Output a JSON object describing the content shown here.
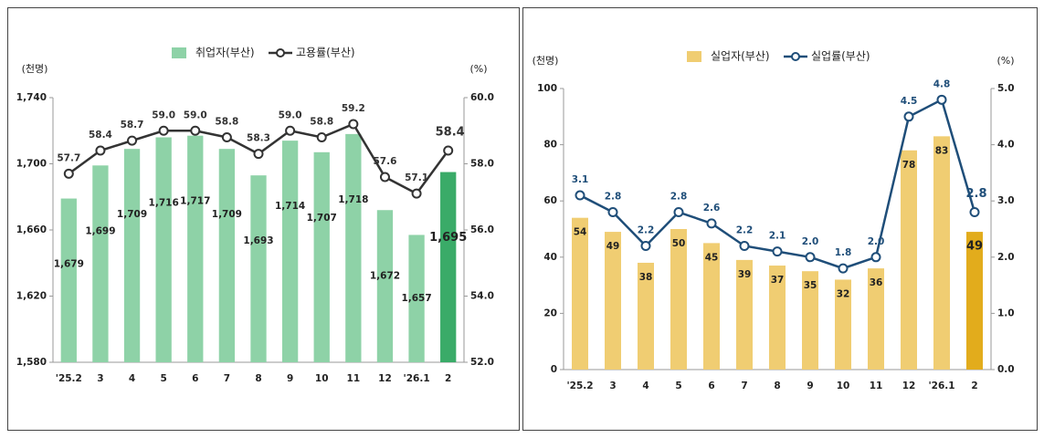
{
  "chart_data": [
    {
      "type": "combo",
      "y_unit": "(천명)",
      "y2_unit": "(%)",
      "categories": [
        "'25.2",
        "3",
        "4",
        "5",
        "6",
        "7",
        "8",
        "9",
        "10",
        "11",
        "12",
        "'26.1",
        "2"
      ],
      "series": [
        {
          "name": "취업자(부산)",
          "type": "bar",
          "axis": "y",
          "color": "#8ed2a7",
          "colors": [
            "#8ed2a7",
            "#8ed2a7",
            "#8ed2a7",
            "#8ed2a7",
            "#8ed2a7",
            "#8ed2a7",
            "#8ed2a7",
            "#8ed2a7",
            "#8ed2a7",
            "#8ed2a7",
            "#8ed2a7",
            "#8ed2a7",
            "#3aab68"
          ],
          "values": [
            1679,
            1699,
            1709,
            1716,
            1717,
            1709,
            1693,
            1714,
            1707,
            1718,
            1672,
            1657,
            1695
          ],
          "value_labels": [
            "1,679",
            "1,699",
            "1,709",
            "1,716",
            "1,717",
            "1,709",
            "1,693",
            "1,714",
            "1,707",
            "1,718",
            "1,672",
            "1,657",
            "1,695"
          ]
        },
        {
          "name": "고용률(부산)",
          "type": "line",
          "axis": "y2",
          "color": "#333333",
          "values": [
            57.7,
            58.4,
            58.7,
            59.0,
            59.0,
            58.8,
            58.3,
            59.0,
            58.8,
            59.2,
            57.6,
            57.1,
            58.4
          ],
          "value_labels": [
            "57.7",
            "58.4",
            "58.7",
            "59.0",
            "59.0",
            "58.8",
            "58.3",
            "59.0",
            "58.8",
            "59.2",
            "57.6",
            "57.1",
            "58.4"
          ]
        }
      ],
      "ylim": [
        1580,
        1740
      ],
      "yticks": [
        {
          "value": 1580,
          "label": "1,580"
        },
        {
          "value": 1620,
          "label": "1,620"
        },
        {
          "value": 1660,
          "label": "1,660"
        },
        {
          "value": 1700,
          "label": "1,700"
        },
        {
          "value": 1740,
          "label": "1,740"
        }
      ],
      "y2lim": [
        52,
        60
      ],
      "y2ticks": [
        {
          "value": 52,
          "label": "52.0"
        },
        {
          "value": 54,
          "label": "54.0"
        },
        {
          "value": 56,
          "label": "56.0"
        },
        {
          "value": 58,
          "label": "58.0"
        },
        {
          "value": 60,
          "label": "60.0"
        }
      ]
    },
    {
      "type": "combo",
      "y_unit": "(천명)",
      "y2_unit": "(%)",
      "categories": [
        "'25.2",
        "3",
        "4",
        "5",
        "6",
        "7",
        "8",
        "9",
        "10",
        "11",
        "12",
        "'26.1",
        "2"
      ],
      "series": [
        {
          "name": "실업자(부산)",
          "type": "bar",
          "axis": "y",
          "color": "#f0cd72",
          "colors": [
            "#f0cd72",
            "#f0cd72",
            "#f0cd72",
            "#f0cd72",
            "#f0cd72",
            "#f0cd72",
            "#f0cd72",
            "#f0cd72",
            "#f0cd72",
            "#f0cd72",
            "#f0cd72",
            "#f0cd72",
            "#e2ac1c"
          ],
          "values": [
            54,
            49,
            38,
            50,
            45,
            39,
            37,
            35,
            32,
            36,
            78,
            83,
            49
          ]
        },
        {
          "name": "실업률(부산)",
          "type": "line",
          "axis": "y2",
          "color": "#1f4e79",
          "values": [
            3.1,
            2.8,
            2.2,
            2.8,
            2.6,
            2.2,
            2.1,
            2.0,
            1.8,
            2.0,
            4.5,
            4.8,
            2.8
          ],
          "value_labels": [
            "3.1",
            "2.8",
            "2.2",
            "2.8",
            "2.6",
            "2.2",
            "2.1",
            "2.0",
            "1.8",
            "2.0",
            "4.5",
            "4.8",
            "2.8"
          ]
        }
      ],
      "ylim": [
        0,
        100
      ],
      "yticks": [
        0,
        20,
        40,
        60,
        80,
        100
      ],
      "y2lim": [
        0,
        5
      ],
      "y2ticks": [
        {
          "value": 0,
          "label": "0.0"
        },
        {
          "value": 1,
          "label": "1.0"
        },
        {
          "value": 2,
          "label": "2.0"
        },
        {
          "value": 3,
          "label": "3.0"
        },
        {
          "value": 4,
          "label": "4.0"
        },
        {
          "value": 5,
          "label": "5.0"
        }
      ]
    }
  ]
}
